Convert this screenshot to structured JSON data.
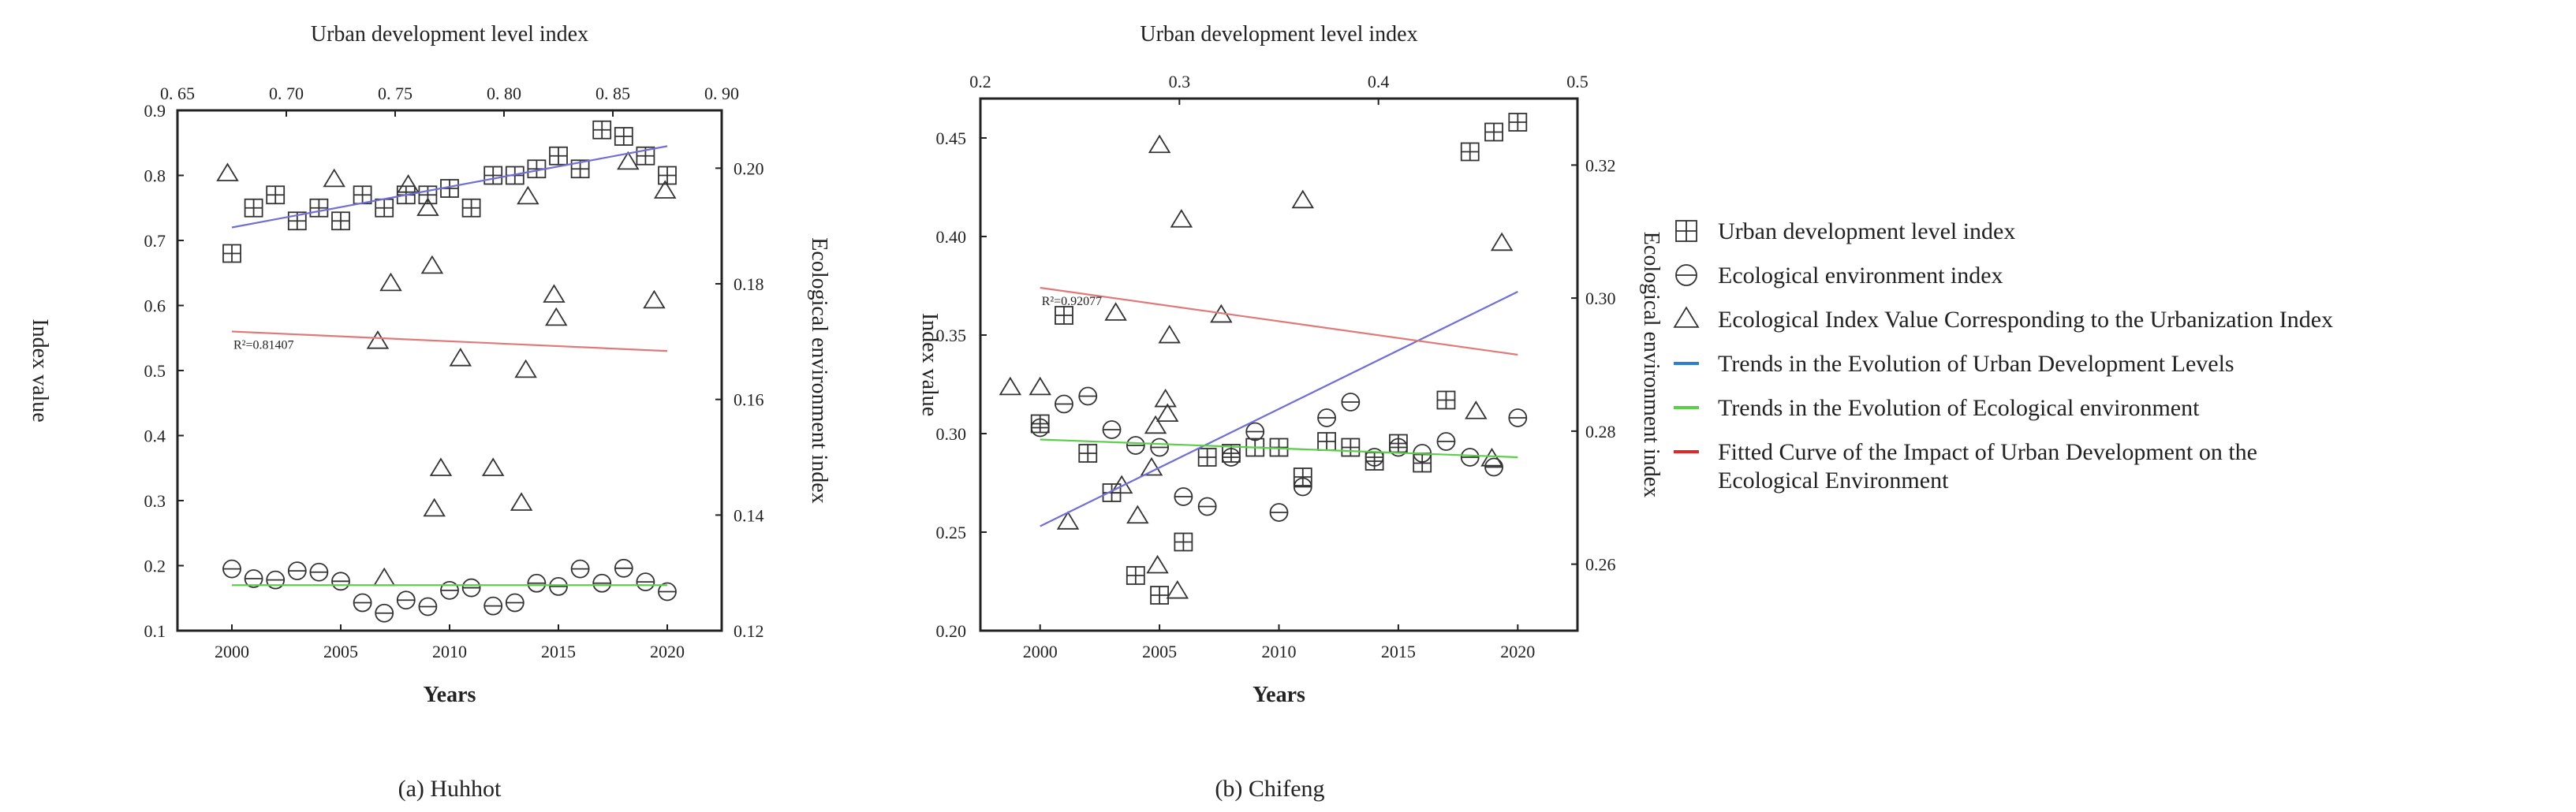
{
  "chart_data": [
    {
      "type": "scatter",
      "caption": "(a) Huhhot",
      "xlabel": "Years",
      "ylabel": "Index value",
      "y2label": "Ecological environment index",
      "x2label": "Urban development level index",
      "xlim": [
        1997.5,
        2022.5
      ],
      "xticks": [
        2000,
        2005,
        2010,
        2015,
        2020
      ],
      "ylim": [
        0.1,
        0.9
      ],
      "yticks": [
        "0.1",
        "0.2",
        "0.3",
        "0.4",
        "0.5",
        "0.6",
        "0.7",
        "0.8",
        "0.9"
      ],
      "y2lim": [
        0.12,
        0.21
      ],
      "y2ticks": [
        "0.12",
        "0.14",
        "0.16",
        "0.18",
        "0.20"
      ],
      "x2lim": [
        0.65,
        0.9
      ],
      "x2ticks": [
        "0. 65",
        "0. 70",
        "0. 75",
        "0. 80",
        "0. 85",
        "0. 90"
      ],
      "annotation": "R²=0.81407",
      "series": [
        {
          "marker": "grid",
          "x": [
            2000,
            2001,
            2002,
            2003,
            2004,
            2005,
            2006,
            2007,
            2008,
            2009,
            2010,
            2011,
            2012,
            2013,
            2014,
            2015,
            2016,
            2017,
            2018,
            2019,
            2020
          ],
          "y": [
            0.68,
            0.75,
            0.77,
            0.73,
            0.75,
            0.73,
            0.77,
            0.75,
            0.77,
            0.77,
            0.78,
            0.75,
            0.8,
            0.8,
            0.81,
            0.83,
            0.81,
            0.87,
            0.86,
            0.83,
            0.8
          ]
        },
        {
          "marker": "circle",
          "x": [
            2000,
            2001,
            2002,
            2003,
            2004,
            2005,
            2006,
            2007,
            2008,
            2009,
            2010,
            2011,
            2012,
            2013,
            2014,
            2015,
            2016,
            2017,
            2018,
            2019,
            2020
          ],
          "y": [
            0.195,
            0.18,
            0.178,
            0.192,
            0.19,
            0.176,
            0.143,
            0.127,
            0.147,
            0.137,
            0.162,
            0.166,
            0.138,
            0.143,
            0.173,
            0.168,
            0.195,
            0.173,
            0.196,
            0.175,
            0.16
          ]
        },
        {
          "marker": "triangle",
          "x2": [
            0.673,
            0.722,
            0.742,
            0.745,
            0.748,
            0.756,
            0.765,
            0.767,
            0.768,
            0.771,
            0.78,
            0.795,
            0.808,
            0.81,
            0.811,
            0.823,
            0.824,
            0.857,
            0.869,
            0.874
          ],
          "y2": [
            0.199,
            0.198,
            0.17,
            0.129,
            0.18,
            0.197,
            0.193,
            0.183,
            0.141,
            0.148,
            0.167,
            0.148,
            0.142,
            0.165,
            0.195,
            0.178,
            0.174,
            0.201,
            0.177,
            0.196
          ]
        },
        {
          "type": "line",
          "x": [
            2000,
            2020
          ],
          "y": [
            0.72,
            0.845
          ],
          "color": "#6f6fd6"
        },
        {
          "type": "line",
          "x": [
            2000,
            2020
          ],
          "y": [
            0.17,
            0.17
          ],
          "color": "#5ccf4a"
        },
        {
          "type": "line",
          "x": [
            2000,
            2020
          ],
          "y": [
            0.56,
            0.53
          ],
          "color": "#e07a7a"
        }
      ]
    },
    {
      "type": "scatter",
      "caption": "(b) Chifeng",
      "xlabel": "Years",
      "ylabel": "Index value",
      "y2label": "Ecological environment index",
      "x2label": "Urban development level index",
      "xlim": [
        1997.5,
        2022.5
      ],
      "xticks": [
        2000,
        2005,
        2010,
        2015,
        2020
      ],
      "ylim": [
        0.2,
        0.47
      ],
      "yticks": [
        "0.20",
        "0.25",
        "0.30",
        "0.35",
        "0.40",
        "0.45"
      ],
      "y2lim": [
        0.25,
        0.33
      ],
      "y2ticks": [
        "0.26",
        "0.28",
        "0.30",
        "0.32"
      ],
      "x2lim": [
        0.2,
        0.5
      ],
      "x2ticks": [
        "0.2",
        "0.3",
        "0.4",
        "0.5"
      ],
      "annotation": "R²=0.92077",
      "series": [
        {
          "marker": "grid",
          "x": [
            2000,
            2001,
            2002,
            2003,
            2004,
            2005,
            2006,
            2007,
            2008,
            2009,
            2010,
            2011,
            2012,
            2013,
            2014,
            2015,
            2016,
            2017,
            2018,
            2019,
            2020
          ],
          "y": [
            0.305,
            0.36,
            0.29,
            0.27,
            0.228,
            0.218,
            0.245,
            0.288,
            0.29,
            0.293,
            0.293,
            0.278,
            0.296,
            0.293,
            0.286,
            0.295,
            0.285,
            0.317,
            0.443,
            0.453,
            0.458
          ]
        },
        {
          "marker": "circle",
          "x": [
            2000,
            2001,
            2002,
            2003,
            2004,
            2005,
            2006,
            2007,
            2008,
            2009,
            2010,
            2011,
            2012,
            2013,
            2014,
            2015,
            2016,
            2017,
            2018,
            2019,
            2020
          ],
          "y": [
            0.303,
            0.315,
            0.319,
            0.302,
            0.294,
            0.293,
            0.268,
            0.263,
            0.288,
            0.301,
            0.26,
            0.273,
            0.308,
            0.316,
            0.288,
            0.293,
            0.29,
            0.296,
            0.288,
            0.283,
            0.308
          ]
        },
        {
          "marker": "triangle",
          "x2": [
            0.215,
            0.23,
            0.244,
            0.268,
            0.271,
            0.279,
            0.286,
            0.288,
            0.289,
            0.29,
            0.293,
            0.294,
            0.295,
            0.299,
            0.301,
            0.321,
            0.362,
            0.449,
            0.457,
            0.462
          ],
          "y2": [
            0.2865,
            0.2865,
            0.2663,
            0.2977,
            0.2717,
            0.2672,
            0.2744,
            0.2807,
            0.2597,
            0.3229,
            0.2847,
            0.2825,
            0.2943,
            0.2559,
            0.3117,
            0.2974,
            0.3146,
            0.2829,
            0.2758,
            0.3082
          ]
        },
        {
          "type": "line",
          "x": [
            2000,
            2020
          ],
          "y": [
            0.253,
            0.372
          ],
          "color": "#6f6fd6"
        },
        {
          "type": "line",
          "x": [
            2000,
            2020
          ],
          "y": [
            0.297,
            0.288
          ],
          "color": "#5ccf4a"
        },
        {
          "type": "line",
          "x": [
            2000,
            2020
          ],
          "y": [
            0.374,
            0.34
          ],
          "color": "#e07a7a"
        }
      ]
    }
  ],
  "legend": {
    "items": [
      {
        "label": "Urban development level index",
        "marker": "grid"
      },
      {
        "label": "Ecological environment index",
        "marker": "circle"
      },
      {
        "label": "Ecological Index Value Corresponding to the Urbanization Index",
        "marker": "triangle"
      },
      {
        "label": "Trends in the Evolution of Urban Development Levels",
        "marker": "line",
        "color": "#2f7fd1"
      },
      {
        "label": "Trends in the Evolution of Ecological environment",
        "marker": "line",
        "color": "#5ccf4a"
      },
      {
        "label": "Fitted Curve of the Impact of Urban Development on the",
        "label2": "Ecological Environment",
        "marker": "line",
        "color": "#e02828"
      }
    ]
  }
}
